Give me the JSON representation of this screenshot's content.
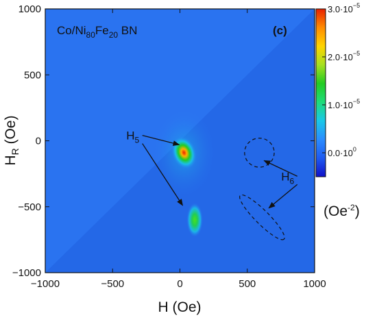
{
  "chart_data": {
    "type": "heatmap",
    "title": "Co/Ni80Fe20 BN",
    "title_parts": {
      "t1": "Co/Ni",
      "t1_sub": "80",
      "t2": "Fe",
      "t2_sub": "20",
      "t3": " BN"
    },
    "panel_label": "(c)",
    "xlabel": "H (Oe)",
    "ylabel": {
      "base": "H",
      "sub": "R",
      "rest": " (Oe)"
    },
    "xlim": [
      -1000,
      1000
    ],
    "ylim": [
      -1000,
      1000
    ],
    "x_ticks": [
      -1000,
      -500,
      0,
      500,
      1000
    ],
    "x_tick_labels": [
      "−1000",
      "−500",
      "0",
      "500",
      "1000"
    ],
    "y_ticks": [
      -1000,
      -500,
      0,
      500,
      1000
    ],
    "y_tick_labels": [
      "−1000",
      "−500",
      "0",
      "500",
      "1000"
    ],
    "colorbar": {
      "min": -5e-06,
      "max": 3e-05,
      "ticks": [
        {
          "value": 3e-05,
          "mant": "3.0·10",
          "exp": "−5"
        },
        {
          "value": 2e-05,
          "mant": "2.0·10",
          "exp": "−5"
        },
        {
          "value": 1e-05,
          "mant": "1.0·10",
          "exp": "−5"
        },
        {
          "value": 0.0,
          "mant": "0.0·10",
          "exp": "0"
        }
      ],
      "unit": {
        "base": "(Oe",
        "exp": "-2",
        "end": ")"
      },
      "colors": [
        "#1010c8",
        "#1e5af0",
        "#2a8cff",
        "#19c8e8",
        "#1edc7a",
        "#22cc22",
        "#a6e020",
        "#ffd400",
        "#ff8c00",
        "#e82000"
      ]
    },
    "background_color": "#2a73f0",
    "features": [
      {
        "name": "peak-top",
        "x": 30,
        "y": -90,
        "rx": 90,
        "ry": 130,
        "value": 3e-05
      },
      {
        "name": "peak-bottom",
        "x": 110,
        "y": -600,
        "rx": 60,
        "ry": 130,
        "value": 1.7e-05
      }
    ],
    "annotations": [
      {
        "base": "H",
        "sub": "5",
        "x": -350,
        "y": 10,
        "arrow_to": [
          [
            -5,
            -30
          ],
          [
            20,
            -490
          ]
        ]
      },
      {
        "base": "H",
        "sub": "6",
        "x": 800,
        "y": -300,
        "arrow_to": [
          [
            625,
            -150
          ],
          [
            660,
            -510
          ]
        ]
      }
    ],
    "dashed_regions": [
      {
        "shape": "circle",
        "cx": 590,
        "cy": -90,
        "r": 110
      },
      {
        "shape": "ellipse",
        "cx": 610,
        "cy": -580,
        "rx": 230,
        "ry": 52,
        "angle_deg": 45
      }
    ]
  }
}
